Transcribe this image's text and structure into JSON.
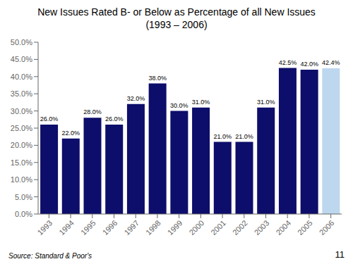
{
  "chart_data": {
    "type": "bar",
    "title": "New Issues Rated B- or Below as Percentage of all New Issues",
    "subtitle": "(1993 – 2006)",
    "categories": [
      "1993",
      "1994",
      "1995",
      "1996",
      "1997",
      "1998",
      "1999",
      "2000",
      "2001",
      "2002",
      "2003",
      "2004",
      "2005",
      "2006"
    ],
    "values": [
      26.0,
      22.0,
      28.0,
      26.0,
      32.0,
      38.0,
      30.0,
      31.0,
      21.0,
      21.0,
      31.0,
      42.5,
      42.0,
      42.4
    ],
    "value_labels": [
      "26.0%",
      "22.0%",
      "28.0%",
      "26.0%",
      "32.0%",
      "38.0%",
      "30.0%",
      "31.0%",
      "21.0%",
      "21.0%",
      "31.0%",
      "42.5%",
      "42.0%",
      "42.4%"
    ],
    "data_labels": true,
    "colors": [
      "#0d0d6b",
      "#0d0d6b",
      "#0d0d6b",
      "#0d0d6b",
      "#0d0d6b",
      "#0d0d6b",
      "#0d0d6b",
      "#0d0d6b",
      "#0d0d6b",
      "#0d0d6b",
      "#0d0d6b",
      "#0d0d6b",
      "#0d0d6b",
      "#bdd7ee"
    ],
    "ylim": [
      0,
      50
    ],
    "yticks": [
      {
        "value": 0.0,
        "label": "0.0%"
      },
      {
        "value": 5.0,
        "label": "5.0%"
      },
      {
        "value": 10.0,
        "label": "10.0%"
      },
      {
        "value": 15.0,
        "label": "15.0%"
      },
      {
        "value": 20.0,
        "label": "20.0%"
      },
      {
        "value": 25.0,
        "label": "25.0%"
      },
      {
        "value": 30.0,
        "label": "30.0%"
      },
      {
        "value": 35.0,
        "label": "35.0%"
      },
      {
        "value": 40.0,
        "label": "40.0%"
      },
      {
        "value": 45.0,
        "label": "45.0%"
      },
      {
        "value": 50.0,
        "label": "50.0%"
      }
    ],
    "grid": false,
    "annotations": [
      "Source: Standard & Poor's",
      "11"
    ]
  }
}
